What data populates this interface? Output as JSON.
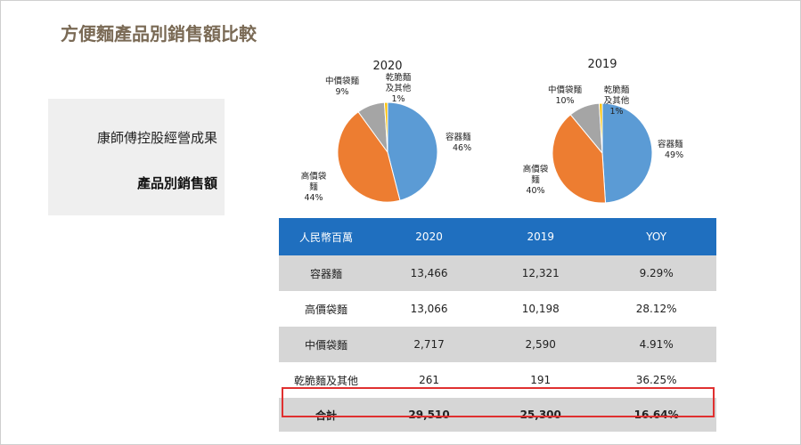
{
  "title": "方便麵產品別銷售額比較",
  "sidebar": {
    "line1": "康師傅控股經營成果",
    "line2": "產品別銷售額"
  },
  "chart_data": [
    {
      "type": "pie",
      "title": "2020",
      "categories": [
        "容器麵",
        "高價袋麵",
        "中價袋麵",
        "乾脆麵及其他"
      ],
      "values": [
        46,
        44,
        9,
        1
      ],
      "labels": [
        "46%",
        "44%",
        "9%",
        "1%"
      ],
      "colors": [
        "#5b9bd5",
        "#ed7d31",
        "#a5a5a5",
        "#ffc000"
      ]
    },
    {
      "type": "pie",
      "title": "2019",
      "categories": [
        "容器麵",
        "高價袋麵",
        "中價袋麵",
        "乾脆麵及其他"
      ],
      "values": [
        49,
        40,
        10,
        1
      ],
      "labels": [
        "49%",
        "40%",
        "10%",
        "1%"
      ],
      "colors": [
        "#5b9bd5",
        "#ed7d31",
        "#a5a5a5",
        "#ffc000"
      ]
    },
    {
      "type": "table",
      "headers": [
        "人民幣百萬",
        "2020",
        "2019",
        "YOY"
      ],
      "rows": [
        [
          "容器麵",
          "13,466",
          "12,321",
          "9.29%"
        ],
        [
          "高價袋麵",
          "13,066",
          "10,198",
          "28.12%"
        ],
        [
          "中價袋麵",
          "2,717",
          "2,590",
          "4.91%"
        ],
        [
          "乾脆麵及其他",
          "261",
          "191",
          "36.25%"
        ]
      ],
      "total": [
        "合計",
        "29,510",
        "25,300",
        "16.64%"
      ]
    }
  ],
  "pie_label_parts": {
    "container": [
      "容器麵"
    ],
    "high": [
      "高價袋",
      "麵"
    ],
    "mid": [
      "中價袋麵"
    ],
    "other": [
      "乾脆麵",
      "及其他"
    ]
  },
  "colors": {
    "header": "#1f6fbf",
    "band": "#d6d6d6",
    "highlight": "#e03030",
    "title": "#7a6a55"
  }
}
